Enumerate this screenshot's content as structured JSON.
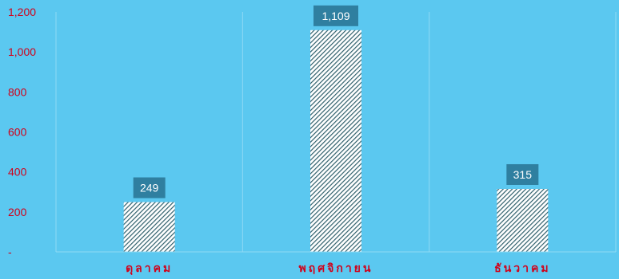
{
  "chart_data": {
    "type": "bar",
    "categories": [
      "ดุลาคม",
      "พฤศจิกายน",
      "ธันวาคม"
    ],
    "values": [
      249,
      1109,
      315
    ],
    "data_labels": [
      "249",
      "1,109",
      "315"
    ],
    "ylim": [
      0,
      1200
    ],
    "yticks": [
      0,
      200,
      400,
      600,
      800,
      1000,
      1200
    ],
    "ytick_labels": [
      "-",
      "200",
      "400",
      "600",
      "800",
      "1,000",
      "1,200"
    ],
    "xlabel": "",
    "ylabel": "",
    "title": "",
    "grid": "vertical separators between categories",
    "legend": "none",
    "colors": {
      "background": "#5BC8F0",
      "bar_fill_light": "#ffffff",
      "bar_fill_stripe": "#2F5F6B",
      "data_label_bg": "#2F7FA0",
      "tick_text": "#D0021B",
      "gridline": "#8FDAF5"
    }
  }
}
